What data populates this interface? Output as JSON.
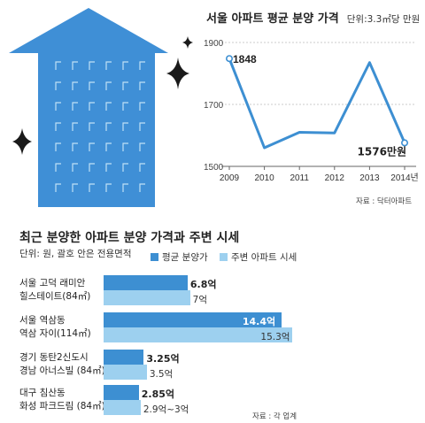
{
  "line_chart": {
    "title": "서울 아파트 평균 분양 가격",
    "unit": "단위:3.3㎡당 만원",
    "source": "자료 : 닥터아파트"
  },
  "bar_chart": {
    "title": "최근 분양한 아파트 분양 가격과 주변 시세",
    "unit": "단위: 원, 괄호 안은 전용면적",
    "source": "자료 : 각 업계"
  },
  "colors": {
    "primary_blue": "#3d8fd2",
    "light_blue": "#9dd0ef",
    "building_blue": "#3f8fd6",
    "line_blue": "#3d8fd2"
  },
  "chart_data": [
    {
      "type": "line",
      "title": "서울 아파트 평균 분양 가격",
      "x": [
        "2009",
        "2010",
        "2011",
        "2012",
        "2013",
        "2014년"
      ],
      "series": [
        {
          "values": [
            1848,
            1560,
            1610,
            1608,
            1835,
            1576
          ]
        }
      ],
      "ylim": [
        1500,
        1900
      ],
      "yticks": [
        1500,
        1700,
        1900
      ],
      "annotations": [
        {
          "x": "2009",
          "label": "1848"
        },
        {
          "x": "2014년",
          "label": "1576만원"
        }
      ],
      "grid": false
    },
    {
      "type": "bar",
      "orientation": "horizontal",
      "title": "최근 분양한 아파트 분양 가격과 주변 시세",
      "categories": [
        [
          "서울 고덕 래미안",
          "힐스테이트(84㎡)"
        ],
        [
          "서울 역삼동",
          "역삼 자이(114㎡)"
        ],
        [
          "경기 동탄2신도시",
          "경남 아너스빌 (84㎡)"
        ],
        [
          "대구 침산동",
          "화성 파크드림 (84㎡)"
        ]
      ],
      "series": [
        {
          "name": "평균 분양가",
          "values": [
            6.8,
            14.4,
            3.25,
            2.85
          ],
          "labels": [
            "6.8억",
            "14.4억",
            "3.25억",
            "2.85억"
          ]
        },
        {
          "name": "주변 아파트 시세",
          "values": [
            7,
            15.3,
            3.5,
            3.0
          ],
          "labels": [
            "7억",
            "15.3억",
            "3.5억",
            "2.9억~3억"
          ]
        }
      ],
      "legend": "top-right"
    }
  ]
}
